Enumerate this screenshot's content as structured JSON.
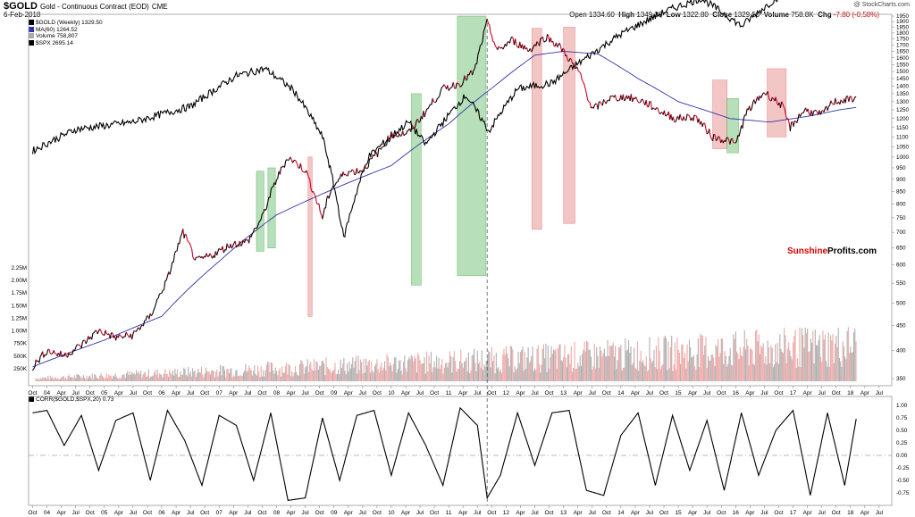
{
  "header": {
    "symbol": "$GOLD",
    "description": "Gold - Continuous Contract (EOD)",
    "exchange": "CME",
    "date": "6-Feb-2018",
    "open_label": "Open",
    "open": "1334.60",
    "high_label": "High",
    "high": "1349.30",
    "low_label": "Low",
    "low": "1322.80",
    "close_label": "Close",
    "close": "1329.50",
    "volume_label": "Volume",
    "volume": "758.8K",
    "chg_label": "Chg",
    "chg": "-7.80 (-0.58%)",
    "copyright": "@ StockCharts.com"
  },
  "legend": {
    "gold": "$GOLD (Weekly) 1329.50",
    "ma": "MA(60) 1264.52",
    "volume": "Volume 758,807",
    "spx": "$SPX 2695.14",
    "corr": "CORR($GOLD,$SPX,20) 0.73"
  },
  "brand": {
    "sunshine": "Sunshine",
    "profits": "Profits.com"
  },
  "colors": {
    "gold_up": "#000000",
    "gold_down": "#cc0022",
    "spx": "#000000",
    "ma": "#3333aa",
    "vol_up": "#b0b0b0",
    "vol_down": "#f0a8a8",
    "green_zone": "#4cb050",
    "red_zone": "#e07070",
    "corr": "#000000"
  },
  "chart_data": [
    {
      "type": "line",
      "title": "$GOLD Gold - Continuous Contract (EOD) CME",
      "x_axis": [
        "Oct",
        "04",
        "Apr",
        "Jul",
        "Oct",
        "05",
        "Apr",
        "Jul",
        "Oct",
        "06",
        "Apr",
        "Jul",
        "Oct",
        "07",
        "Apr",
        "Jul",
        "Oct",
        "08",
        "Apr",
        "Jul",
        "Oct",
        "09",
        "Apr",
        "Jul",
        "Oct",
        "10",
        "Apr",
        "Jul",
        "Oct",
        "11",
        "Apr",
        "Jul",
        "Oct",
        "12",
        "Apr",
        "Jul",
        "Oct",
        "13",
        "Apr",
        "Jul",
        "Oct",
        "14",
        "Apr",
        "Jul",
        "Oct",
        "15",
        "Apr",
        "Jul",
        "Oct",
        "16",
        "Apr",
        "Jul",
        "Oct",
        "17",
        "Apr",
        "Jul",
        "Oct",
        "18",
        "Apr",
        "Jul"
      ],
      "price_axis": [
        "1950",
        "1900",
        "1850",
        "1800",
        "1750",
        "1700",
        "1650",
        "1600",
        "1550",
        "1500",
        "1450",
        "1400",
        "1350",
        "1300",
        "1250",
        "1200",
        "1150",
        "1100",
        "1050",
        "1000",
        "950",
        "900",
        "850",
        "800",
        "750",
        "700",
        "650",
        "600",
        "550",
        "500",
        "450",
        "400",
        "350"
      ],
      "volume_axis": [
        "2.25M",
        "2.00M",
        "1.75M",
        "1.50M",
        "1.25M",
        "1.00M",
        "750K",
        "500K",
        "250K"
      ],
      "log_scale": true,
      "series": [
        {
          "name": "$GOLD (Weekly)",
          "x": [
            2003.75,
            2004.0,
            2004.3,
            2004.6,
            2004.9,
            2005.2,
            2005.5,
            2005.8,
            2006.1,
            2006.37,
            2006.6,
            2006.9,
            2007.2,
            2007.5,
            2007.75,
            2008.0,
            2008.2,
            2008.5,
            2008.8,
            2008.95,
            2009.2,
            2009.5,
            2009.8,
            2010.0,
            2010.3,
            2010.6,
            2010.9,
            2011.2,
            2011.45,
            2011.67,
            2011.85,
            2012.1,
            2012.4,
            2012.7,
            2012.95,
            2013.3,
            2013.5,
            2013.8,
            2014.1,
            2014.4,
            2014.7,
            2014.95,
            2015.3,
            2015.6,
            2015.9,
            2016.0,
            2016.2,
            2016.5,
            2016.8,
            2016.95,
            2017.2,
            2017.5,
            2017.7,
            2017.95,
            2018.1
          ],
          "values": [
            370,
            400,
            390,
            410,
            440,
            425,
            430,
            470,
            560,
            700,
            610,
            630,
            660,
            670,
            750,
            900,
            1000,
            940,
            750,
            860,
            930,
            940,
            1030,
            1110,
            1120,
            1240,
            1380,
            1420,
            1500,
            1890,
            1650,
            1740,
            1660,
            1770,
            1680,
            1470,
            1250,
            1320,
            1330,
            1300,
            1240,
            1200,
            1210,
            1100,
            1080,
            1060,
            1240,
            1360,
            1280,
            1150,
            1250,
            1220,
            1300,
            1310,
            1330
          ]
        },
        {
          "name": "MA(60)",
          "x": [
            2003.75,
            2005.0,
            2006.0,
            2007.0,
            2008.0,
            2009.0,
            2010.0,
            2011.0,
            2011.8,
            2012.5,
            2013.0,
            2013.6,
            2014.3,
            2015.0,
            2015.9,
            2016.6,
            2017.3,
            2017.8,
            2018.1
          ],
          "values": [
            370,
            420,
            470,
            610,
            760,
            860,
            960,
            1170,
            1400,
            1620,
            1650,
            1630,
            1450,
            1300,
            1200,
            1180,
            1215,
            1250,
            1265
          ]
        },
        {
          "name": "$SPX",
          "x": [
            2003.75,
            2004.5,
            2005.5,
            2006.5,
            2007.3,
            2007.8,
            2008.3,
            2008.8,
            2009.17,
            2009.6,
            2010.3,
            2010.6,
            2011.3,
            2011.7,
            2012.2,
            2012.8,
            2013.4,
            2014.0,
            2014.8,
            2015.4,
            2016.1,
            2016.8,
            2017.3,
            2017.8,
            2018.05,
            2018.1
          ],
          "values": [
            1030,
            1140,
            1180,
            1270,
            1470,
            1520,
            1370,
            1100,
            680,
            1000,
            1180,
            1060,
            1340,
            1130,
            1380,
            1420,
            1600,
            1790,
            2000,
            2120,
            1860,
            2160,
            2390,
            2580,
            2860,
            2695
          ]
        }
      ],
      "annotations": [
        "Sunshine Profits.com"
      ]
    },
    {
      "type": "line",
      "title": "CORR($GOLD,$SPX,20) 0.73",
      "x_axis": [
        "Oct",
        "04",
        "Apr",
        "Jul",
        "Oct",
        "05",
        "Apr",
        "Jul",
        "Oct",
        "06",
        "Apr",
        "Jul",
        "Oct",
        "07",
        "Apr",
        "Jul",
        "Oct",
        "08",
        "Apr",
        "Jul",
        "Oct",
        "09",
        "Apr",
        "Jul",
        "Oct",
        "10",
        "Apr",
        "Jul",
        "Oct",
        "11",
        "Apr",
        "Jul",
        "Oct",
        "12",
        "Apr",
        "Jul",
        "Oct",
        "13",
        "Apr",
        "Jul",
        "Oct",
        "14",
        "Apr",
        "Jul",
        "Oct",
        "15",
        "Apr",
        "Jul",
        "Oct",
        "16",
        "Apr",
        "Jul",
        "Oct",
        "17",
        "Apr",
        "Jul",
        "Oct",
        "18",
        "Apr",
        "Jul"
      ],
      "y_axis": [
        "1.00",
        "0.75",
        "0.50",
        "0.25",
        "0.00",
        "-0.25",
        "-0.50",
        "-0.75"
      ],
      "ylim": [
        -0.9,
        1.05
      ],
      "series": [
        {
          "name": "CORR($GOLD,$SPX,20)",
          "x": [
            2003.75,
            2004.0,
            2004.3,
            2004.6,
            2004.9,
            2005.2,
            2005.5,
            2005.8,
            2006.1,
            2006.4,
            2006.7,
            2007.0,
            2007.3,
            2007.6,
            2007.9,
            2008.2,
            2008.5,
            2008.8,
            2009.1,
            2009.4,
            2009.7,
            2010.0,
            2010.3,
            2010.6,
            2010.9,
            2011.2,
            2011.5,
            2011.67,
            2011.9,
            2012.2,
            2012.5,
            2012.8,
            2013.1,
            2013.4,
            2013.7,
            2014.0,
            2014.3,
            2014.6,
            2014.9,
            2015.2,
            2015.5,
            2015.8,
            2016.1,
            2016.4,
            2016.7,
            2017.0,
            2017.3,
            2017.6,
            2017.9,
            2018.1
          ],
          "values": [
            0.85,
            0.9,
            0.2,
            0.8,
            -0.3,
            0.7,
            0.85,
            -0.5,
            0.9,
            0.3,
            -0.6,
            0.8,
            0.6,
            -0.5,
            0.85,
            -0.9,
            -0.85,
            0.75,
            -0.5,
            0.8,
            0.9,
            -0.4,
            0.85,
            0.2,
            -0.6,
            0.95,
            0.6,
            -0.85,
            -0.4,
            0.85,
            -0.2,
            0.85,
            0.9,
            -0.7,
            -0.8,
            0.4,
            0.85,
            -0.6,
            0.8,
            -0.3,
            0.7,
            -0.7,
            0.85,
            -0.4,
            0.5,
            0.9,
            -0.8,
            0.85,
            -0.6,
            0.73
          ]
        }
      ]
    }
  ]
}
